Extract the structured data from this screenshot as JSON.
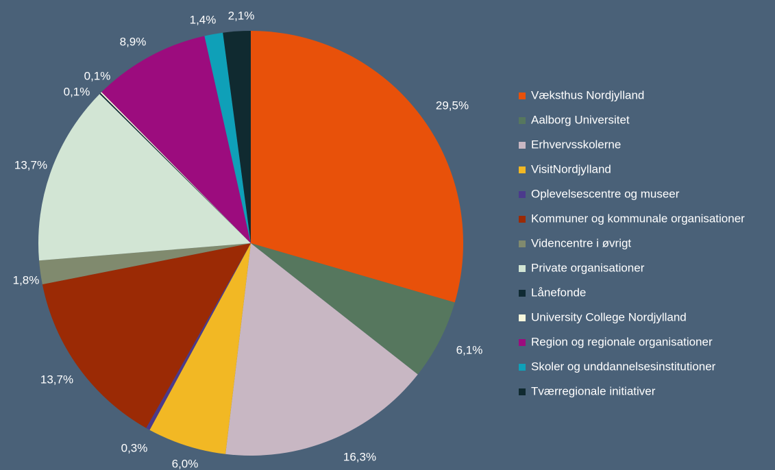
{
  "chart_data": {
    "type": "pie",
    "categories": [
      "Væksthus Nordjylland",
      "Aalborg Universitet",
      "Erhvervsskolerne",
      "VisitNordjylland",
      "Oplevelsescentre og museer",
      "Kommuner og kommunale organisationer",
      "Videncentre i øvrigt",
      "Private organisationer",
      "Lånefonde",
      "University College Nordjylland",
      "Region og regionale organisationer",
      "Skoler og unddannelsesinstitutioner",
      "Tværregionale initiativer"
    ],
    "values": [
      29.5,
      6.1,
      16.3,
      6.0,
      0.3,
      13.7,
      1.8,
      13.7,
      0.1,
      0.1,
      8.9,
      1.4,
      2.1
    ],
    "value_labels": [
      "29,5%",
      "6,1%",
      "16,3%",
      "6,0%",
      "0,3%",
      "13,7%",
      "1,8%",
      "13,7%",
      "0,1%",
      "0,1%",
      "8,9%",
      "1,4%",
      "2,1%"
    ],
    "colors": [
      "#e8510a",
      "#56775e",
      "#c8b7c3",
      "#f2b824",
      "#4b3a8c",
      "#9b2a05",
      "#808a6e",
      "#d2e5d4",
      "#0f2a33",
      "#f7f7dc",
      "#9c0c7e",
      "#0fa0b8",
      "#102a30"
    ],
    "legend": "right"
  }
}
